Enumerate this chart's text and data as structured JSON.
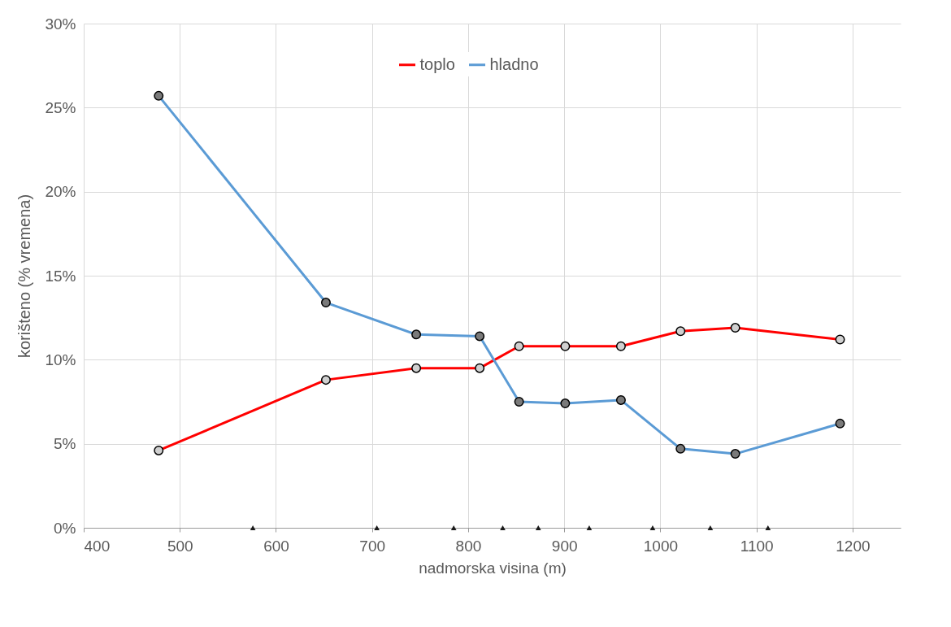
{
  "chart_data": {
    "type": "line",
    "xlabel": "nadmorska visina (m)",
    "ylabel": "korišteno (% vremena)",
    "xlim": [
      400,
      1250
    ],
    "xticks": [
      400,
      500,
      600,
      700,
      800,
      900,
      1000,
      1100,
      1200
    ],
    "ylim": [
      0,
      30
    ],
    "yticks": [
      {
        "value": 0,
        "label": "0%"
      },
      {
        "value": 5,
        "label": "5%"
      },
      {
        "value": 10,
        "label": "10%"
      },
      {
        "value": 15,
        "label": "15%"
      },
      {
        "value": 20,
        "label": "20%"
      },
      {
        "value": 25,
        "label": "25%"
      },
      {
        "value": 30,
        "label": "30%"
      }
    ],
    "grid": true,
    "legend": "top",
    "marker": "circle",
    "line_style": "solid",
    "series": [
      {
        "name": "toplo",
        "color": "#ff0000",
        "x": [
          478,
          652,
          746,
          812,
          853,
          901,
          959,
          1021,
          1078,
          1187
        ],
        "values": [
          4.6,
          8.8,
          9.5,
          9.5,
          10.8,
          10.8,
          10.8,
          11.7,
          11.9,
          11.2
        ]
      },
      {
        "name": "hladno",
        "color": "#5b9bd5",
        "x": [
          478,
          652,
          746,
          812,
          853,
          901,
          959,
          1021,
          1078,
          1187
        ],
        "values": [
          25.7,
          13.4,
          11.5,
          11.4,
          7.5,
          7.4,
          7.6,
          4.7,
          4.4,
          6.2
        ]
      },
      {
        "type": "scatter",
        "marker": "triangle",
        "color": "#1a1a1a",
        "x": [
          576,
          705,
          785,
          836,
          873,
          926,
          992,
          1052,
          1112
        ],
        "values": [
          0,
          0,
          0,
          0,
          0,
          0,
          0,
          0,
          0
        ]
      }
    ]
  }
}
